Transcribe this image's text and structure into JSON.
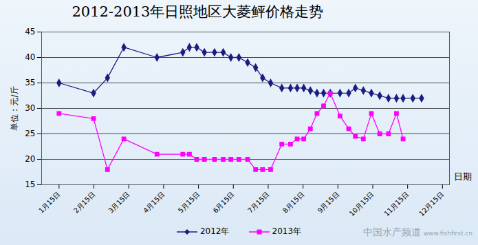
{
  "chart_data": {
    "type": "line",
    "title": "2012-2013年日照地区大菱鲆价格走势",
    "y_label": "单位：元/斤",
    "x_label": "日期",
    "annotations": [
      "中国水产频道",
      "www.fishfirst.cn"
    ],
    "xlim": [
      0.5,
      12.2
    ],
    "xticks": [
      {
        "value": 1,
        "label": "1月15日"
      },
      {
        "value": 2,
        "label": "2月15日"
      },
      {
        "value": 3,
        "label": "3月15日"
      },
      {
        "value": 4,
        "label": "4月15日"
      },
      {
        "value": 5,
        "label": "5月15日"
      },
      {
        "value": 6,
        "label": "6月15日"
      },
      {
        "value": 7,
        "label": "7月15日"
      },
      {
        "value": 8,
        "label": "8月15日"
      },
      {
        "value": 9,
        "label": "9月15日"
      },
      {
        "value": 10,
        "label": "10月15日"
      },
      {
        "value": 11,
        "label": "11月15日"
      },
      {
        "value": 12,
        "label": "12月15日"
      }
    ],
    "ylim": [
      15,
      45
    ],
    "yticks": [
      15,
      20,
      25,
      30,
      35,
      40,
      45
    ],
    "grid": true,
    "legend": "bottom",
    "series": [
      {
        "name": "2012年",
        "color": "#1c1c80",
        "marker": "diamond",
        "x": [
          1,
          1.99,
          2.39,
          2.86,
          3.81,
          4.55,
          4.74,
          4.95,
          5.17,
          5.46,
          5.71,
          5.93,
          6.16,
          6.41,
          6.64,
          6.84,
          7.07,
          7.39,
          7.64,
          7.83,
          8.02,
          8.21,
          8.4,
          8.59,
          8.78,
          9.06,
          9.31,
          9.5,
          9.73,
          9.96,
          10.2,
          10.45,
          10.68,
          10.87,
          11.15,
          11.4
        ],
        "values": [
          35,
          33,
          36,
          42,
          40,
          41,
          42,
          42,
          41,
          41,
          41,
          40,
          40,
          39,
          38,
          36,
          35,
          34,
          34,
          34,
          34,
          33.5,
          33,
          33,
          33,
          33,
          33,
          34,
          33.5,
          33,
          32.5,
          32,
          32,
          32,
          32,
          32
        ]
      },
      {
        "name": "2013年",
        "color": "#ff00ff",
        "marker": "square",
        "x": [
          1,
          1.99,
          2.39,
          2.86,
          3.81,
          4.55,
          4.74,
          4.95,
          5.17,
          5.46,
          5.71,
          5.93,
          6.16,
          6.41,
          6.64,
          6.84,
          7.07,
          7.39,
          7.64,
          7.83,
          8.02,
          8.21,
          8.4,
          8.59,
          8.78,
          9.06,
          9.31,
          9.5,
          9.73,
          9.96,
          10.2,
          10.45,
          10.68,
          10.87
        ],
        "values": [
          29,
          28,
          18,
          24,
          21,
          21,
          21,
          20,
          20,
          20,
          20,
          20,
          20,
          20,
          18,
          18,
          18,
          23,
          23,
          24,
          24,
          26,
          29,
          30.5,
          33,
          28.5,
          26,
          24.5,
          24,
          29,
          25,
          25,
          29,
          24
        ]
      }
    ]
  }
}
